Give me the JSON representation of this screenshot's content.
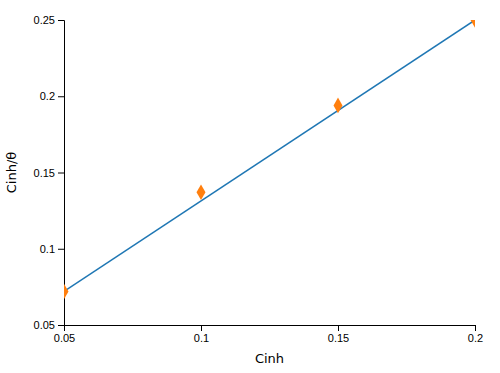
{
  "chart_data": {
    "type": "scatter",
    "xlabel": "Cinh",
    "ylabel": "Cinh/θ",
    "series": [
      {
        "type": "line",
        "line_style": "solid",
        "x": [
          0.05,
          0.2
        ],
        "values": [
          0.072,
          0.25
        ]
      },
      {
        "type": "scatter",
        "marker": "diamond",
        "x": [
          0.05,
          0.1,
          0.15,
          0.2
        ],
        "values": [
          0.072,
          0.137,
          0.194,
          0.25
        ]
      }
    ],
    "xlim": [
      0.05,
      0.2
    ],
    "ylim": [
      0.05,
      0.25
    ],
    "xticks": [
      0.05,
      0.1,
      0.15,
      0.2
    ],
    "yticks": [
      0.05,
      0.1,
      0.15,
      0.2,
      0.25
    ],
    "grid": false
  }
}
